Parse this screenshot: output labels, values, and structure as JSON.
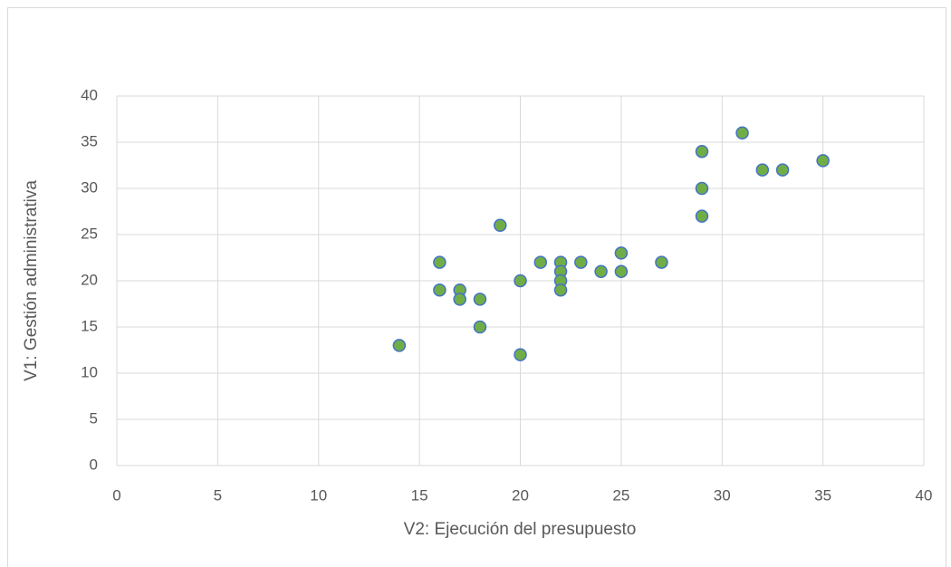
{
  "chart_data": {
    "type": "scatter",
    "x_label": "V2: Ejecución del presupuesto",
    "y_label": "V1: Gestión administrativa",
    "x": [
      14,
      16,
      16,
      17,
      17,
      18,
      18,
      19,
      20,
      20,
      21,
      22,
      22,
      22,
      22,
      23,
      24,
      25,
      25,
      27,
      29,
      29,
      29,
      31,
      32,
      33,
      35
    ],
    "values": [
      13,
      22,
      19,
      19,
      18,
      18,
      15,
      26,
      20,
      12,
      22,
      22,
      21,
      20,
      19,
      22,
      21,
      23,
      21,
      22,
      34,
      30,
      27,
      36,
      32,
      32,
      33
    ],
    "color": "#70ad47",
    "edge_color": "#4472c4",
    "xlim": [
      0,
      40
    ],
    "xticks": [
      0,
      5,
      10,
      15,
      20,
      25,
      30,
      35,
      40
    ],
    "ylim": [
      0,
      40
    ],
    "yticks": [
      0,
      5,
      10,
      15,
      20,
      25,
      30,
      35,
      40
    ],
    "grid": true
  }
}
